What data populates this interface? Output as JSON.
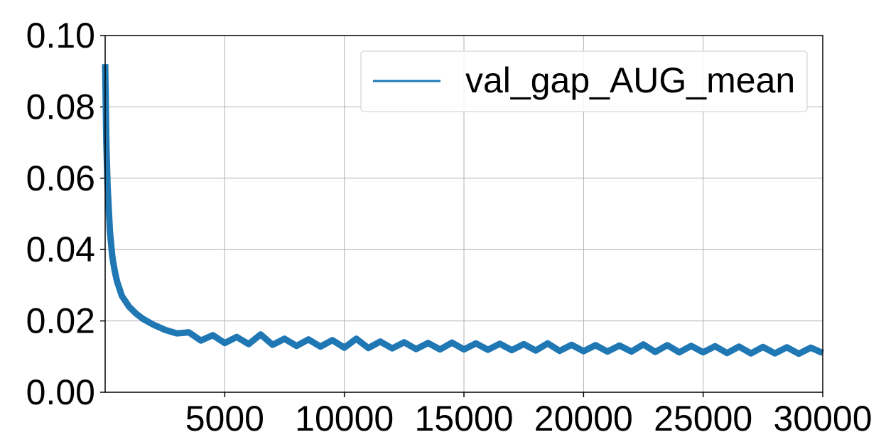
{
  "chart_data": {
    "type": "line",
    "x": [
      0,
      50,
      100,
      200,
      300,
      400,
      500,
      700,
      1000,
      1300,
      1600,
      2000,
      2500,
      3000,
      3500,
      4000,
      4500,
      5000,
      5500,
      6000,
      6500,
      7000,
      7500,
      8000,
      8500,
      9000,
      9500,
      10000,
      10500,
      11000,
      11500,
      12000,
      12500,
      13000,
      13500,
      14000,
      14500,
      15000,
      15500,
      16000,
      16500,
      17000,
      17500,
      18000,
      18500,
      19000,
      19500,
      20000,
      20500,
      21000,
      21500,
      22000,
      22500,
      23000,
      23500,
      24000,
      24500,
      25000,
      25500,
      26000,
      26500,
      27000,
      27500,
      28000,
      28500,
      29000,
      29500,
      30000
    ],
    "series": [
      {
        "name": "val_gap_AUG_mean",
        "color": "#1f77b4",
        "values": [
          0.092,
          0.07,
          0.058,
          0.045,
          0.038,
          0.034,
          0.031,
          0.027,
          0.024,
          0.022,
          0.0205,
          0.019,
          0.0175,
          0.0165,
          0.0168,
          0.0145,
          0.016,
          0.0138,
          0.0155,
          0.0135,
          0.0162,
          0.0133,
          0.015,
          0.013,
          0.0148,
          0.0128,
          0.0146,
          0.0125,
          0.015,
          0.0124,
          0.0142,
          0.0123,
          0.014,
          0.0121,
          0.0138,
          0.012,
          0.0139,
          0.012,
          0.0137,
          0.0119,
          0.0136,
          0.0118,
          0.0135,
          0.0117,
          0.0137,
          0.0116,
          0.0133,
          0.0115,
          0.0132,
          0.0114,
          0.0131,
          0.0114,
          0.0134,
          0.0113,
          0.0132,
          0.0112,
          0.013,
          0.0112,
          0.0129,
          0.011,
          0.0128,
          0.0109,
          0.0127,
          0.0109,
          0.0126,
          0.0108,
          0.0125,
          0.011
        ]
      }
    ],
    "xlim": [
      0,
      30000
    ],
    "xticks": [
      5000,
      10000,
      15000,
      20000,
      25000,
      30000
    ],
    "ylim": [
      0,
      0.1
    ],
    "yticks": [
      {
        "value": 0,
        "label": "0.00"
      },
      {
        "value": 0.02,
        "label": "0.02"
      },
      {
        "value": 0.04,
        "label": "0.04"
      },
      {
        "value": 0.06,
        "label": "0.06"
      },
      {
        "value": 0.08,
        "label": "0.08"
      },
      {
        "value": 0.1,
        "label": "0.10"
      }
    ],
    "grid": true,
    "legend": "upper-right"
  }
}
